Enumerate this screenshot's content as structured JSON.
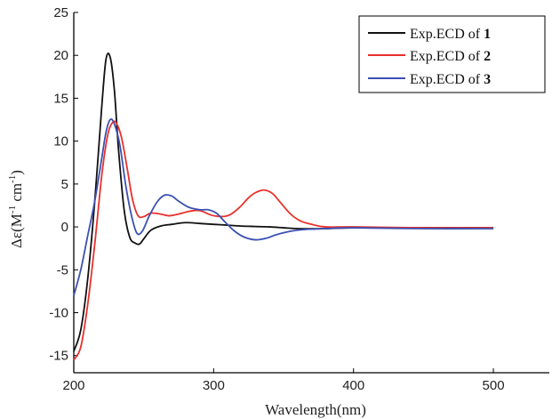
{
  "chart_data": {
    "type": "line",
    "xlabel": "Wavelength(nm)",
    "ylabel": {
      "prefix": "Δε(M",
      "sup1": "-1",
      "mid": " cm",
      "sup2": "-1",
      "suffix": ")"
    },
    "xlim": [
      200,
      540
    ],
    "ylim": [
      -17,
      25
    ],
    "xticks": [
      "200",
      "300",
      "400",
      "500"
    ],
    "yticks": [
      "-15",
      "-10",
      "-5",
      "0",
      "5",
      "10",
      "15",
      "20",
      "25"
    ],
    "legend_position": "top-right",
    "series": [
      {
        "name": "Exp.ECD of ",
        "compound": "1",
        "color": "#111111",
        "x": [
          200,
          205,
          210,
          215,
          220,
          223,
          226,
          229,
          232,
          236,
          240,
          244,
          247,
          250,
          255,
          262,
          270,
          280,
          290,
          300,
          310,
          320,
          330,
          340,
          350,
          360,
          380,
          400,
          450,
          500
        ],
        "y": [
          -14.5,
          -12,
          -6,
          3,
          14,
          19.5,
          19.8,
          16,
          9,
          2,
          -1.2,
          -1.9,
          -2,
          -1.4,
          -0.4,
          0.1,
          0.3,
          0.5,
          0.4,
          0.3,
          0.2,
          0.1,
          0.05,
          0,
          -0.1,
          -0.2,
          -0.2,
          -0.1,
          -0.1,
          -0.1
        ]
      },
      {
        "name": "Exp.ECD of ",
        "compound": "2",
        "color": "#e8312c",
        "x": [
          200,
          205,
          210,
          215,
          220,
          224,
          227,
          230,
          234,
          238,
          242,
          246,
          250,
          255,
          262,
          268,
          275,
          282,
          290,
          300,
          310,
          318,
          325,
          330,
          336,
          342,
          348,
          355,
          362,
          370,
          380,
          400,
          450,
          500
        ],
        "y": [
          -15.5,
          -14,
          -9,
          -2,
          6,
          10.5,
          12,
          12.2,
          10.5,
          7,
          3.2,
          1.3,
          1.2,
          1.6,
          1.5,
          1.3,
          1.5,
          1.8,
          1.9,
          1.3,
          1.3,
          2.2,
          3.4,
          4,
          4.3,
          3.9,
          2.8,
          1.5,
          0.7,
          0.3,
          0,
          0,
          -0.1,
          -0.1
        ]
      },
      {
        "name": "Exp.ECD of ",
        "compound": "3",
        "color": "#3c50b4",
        "x": [
          200,
          205,
          210,
          215,
          220,
          223,
          226,
          229,
          233,
          237,
          241,
          245,
          249,
          254,
          260,
          265,
          270,
          275,
          282,
          290,
          296,
          302,
          308,
          315,
          322,
          330,
          338,
          345,
          355,
          365,
          380,
          400,
          450,
          500
        ],
        "y": [
          -8,
          -5,
          -1,
          3,
          8,
          11,
          12.5,
          12,
          9.5,
          5,
          1.5,
          -0.7,
          -0.5,
          1.3,
          3,
          3.7,
          3.6,
          3,
          2.3,
          2,
          2,
          1.6,
          0.6,
          -0.5,
          -1.2,
          -1.5,
          -1.3,
          -0.9,
          -0.5,
          -0.3,
          -0.2,
          -0.1,
          -0.2,
          -0.2
        ]
      }
    ]
  }
}
